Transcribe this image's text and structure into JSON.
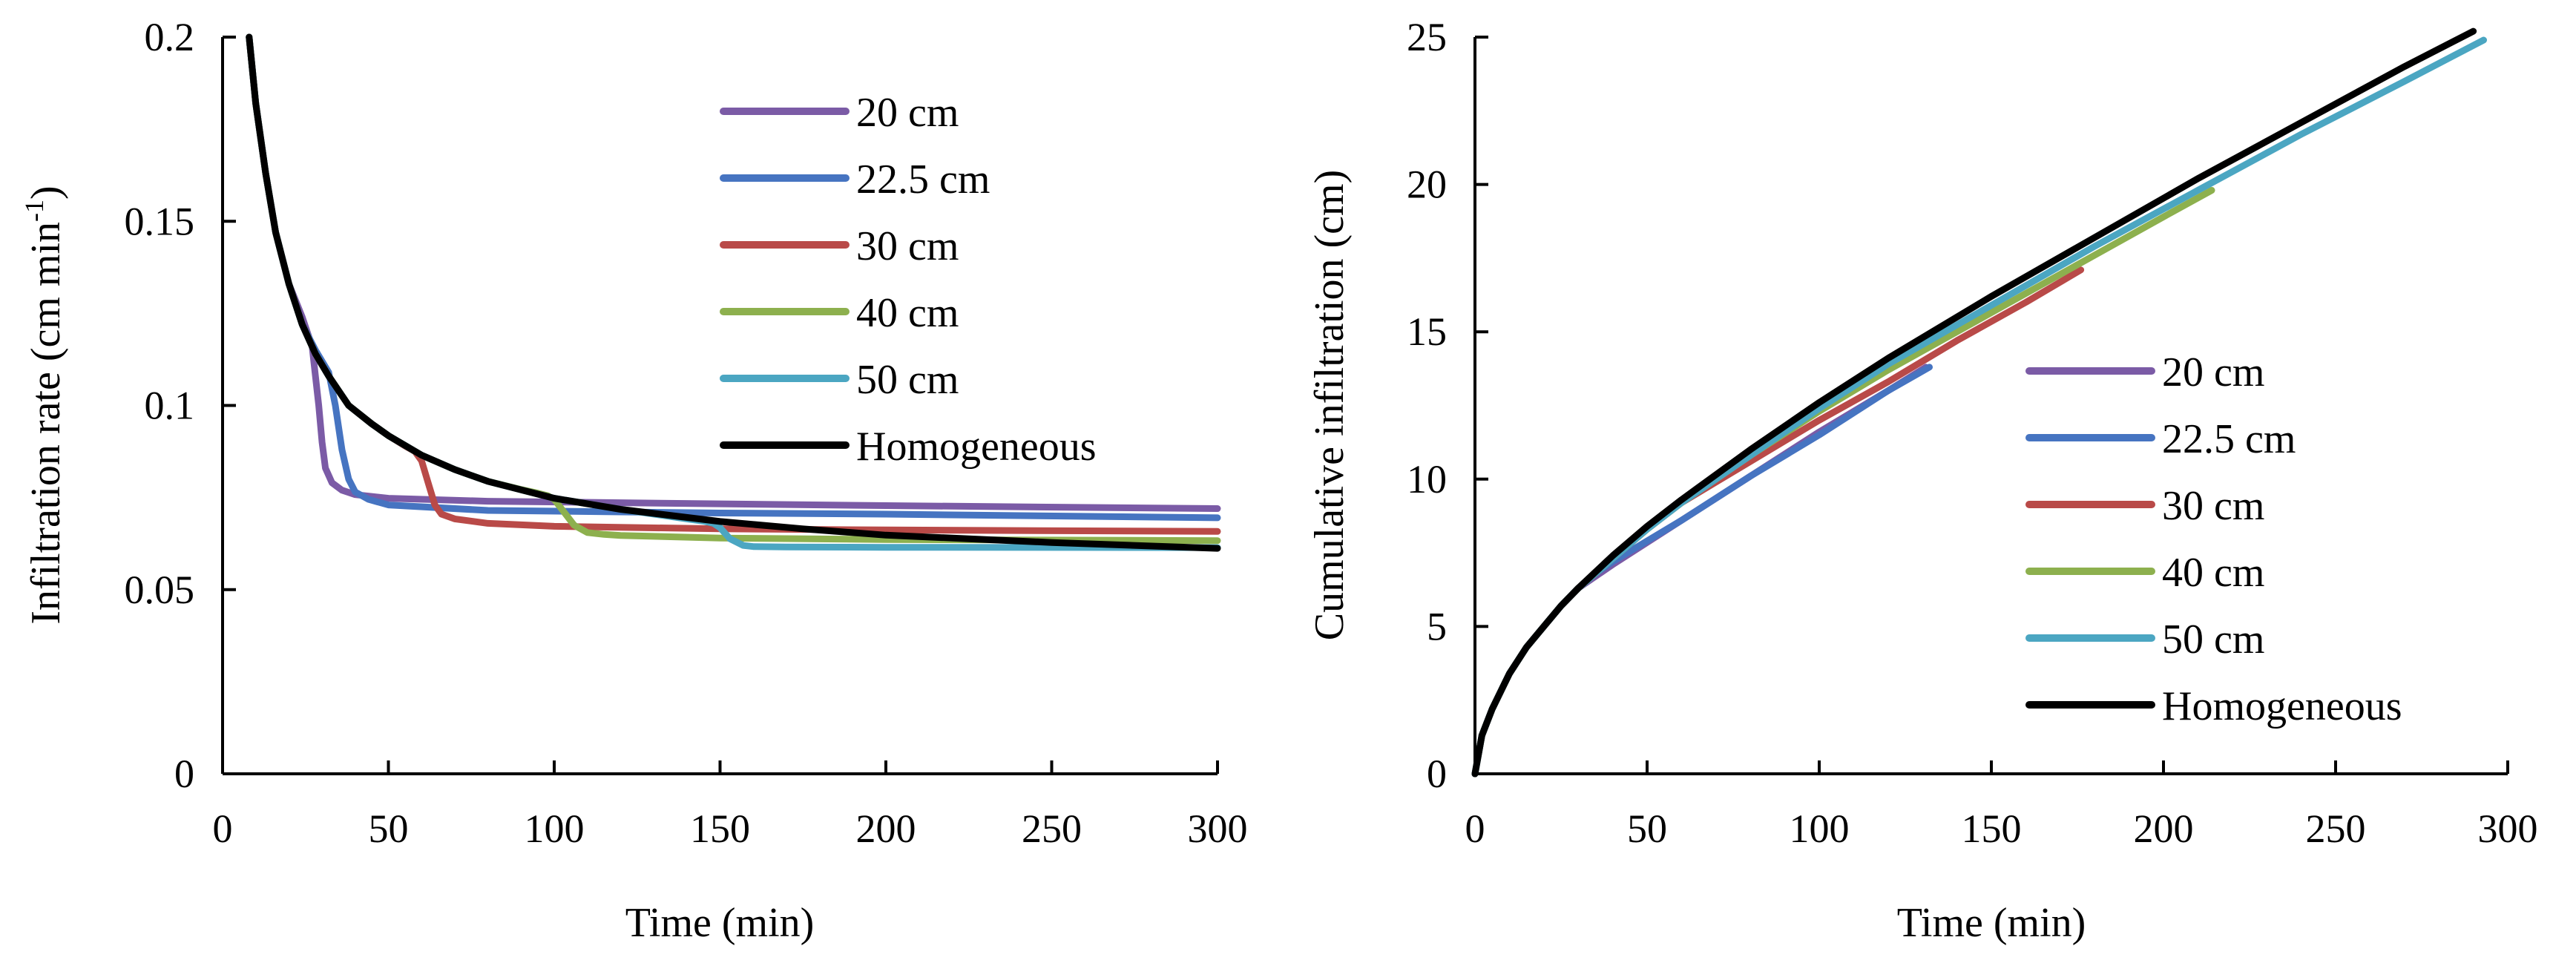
{
  "chart_data": [
    {
      "type": "line",
      "xlabel": "Time (min)",
      "ylabel": "Infiltration rate (cm min",
      "ylabel_sup": "-1",
      "ylabel_end": ")",
      "xlim": [
        0,
        300
      ],
      "ylim": [
        0,
        0.2
      ],
      "xticks": [
        0,
        50,
        100,
        150,
        200,
        250,
        300
      ],
      "xtick_labels": [
        "0",
        "50",
        "100",
        "150",
        "200",
        "250",
        "300"
      ],
      "yticks": [
        0,
        0.05,
        0.1,
        0.15,
        0.2
      ],
      "ytick_labels": [
        "0",
        "0.05",
        "0.1",
        "0.15",
        "0.2"
      ],
      "legend_position": "top-right",
      "series": [
        {
          "name": "20 cm",
          "color": "#7B5BA6",
          "x": [
            8,
            10,
            13,
            16,
            20,
            24,
            27,
            29,
            30,
            31,
            33,
            36,
            40,
            50,
            80,
            150,
            200,
            300
          ],
          "y": [
            0.2,
            0.182,
            0.163,
            0.147,
            0.133,
            0.124,
            0.116,
            0.1,
            0.09,
            0.083,
            0.079,
            0.077,
            0.0758,
            0.0748,
            0.074,
            0.0733,
            0.0728,
            0.072
          ]
        },
        {
          "name": "22.5 cm",
          "color": "#4674C1",
          "x": [
            8,
            10,
            13,
            16,
            20,
            24,
            28,
            32,
            34,
            36,
            38,
            40,
            44,
            50,
            80,
            150,
            200,
            300
          ],
          "y": [
            0.2,
            0.182,
            0.163,
            0.147,
            0.133,
            0.122,
            0.115,
            0.109,
            0.1,
            0.088,
            0.08,
            0.0765,
            0.0745,
            0.073,
            0.0715,
            0.0708,
            0.0705,
            0.0695
          ]
        },
        {
          "name": "30 cm",
          "color": "#B94A48",
          "x": [
            8,
            10,
            13,
            16,
            20,
            24,
            28,
            32,
            38,
            45,
            50,
            55,
            58,
            60,
            62,
            64,
            66,
            70,
            80,
            100,
            150,
            200,
            300
          ],
          "y": [
            0.2,
            0.182,
            0.163,
            0.147,
            0.133,
            0.122,
            0.114,
            0.108,
            0.1,
            0.095,
            0.0918,
            0.089,
            0.0875,
            0.085,
            0.079,
            0.073,
            0.0705,
            0.0692,
            0.068,
            0.0672,
            0.0665,
            0.0662,
            0.0658
          ]
        },
        {
          "name": "40 cm",
          "color": "#8DB04E",
          "x": [
            8,
            10,
            13,
            16,
            20,
            24,
            28,
            32,
            38,
            45,
            50,
            60,
            70,
            80,
            90,
            95,
            98,
            100,
            103,
            106,
            110,
            115,
            120,
            150,
            200,
            300
          ],
          "y": [
            0.2,
            0.182,
            0.163,
            0.147,
            0.133,
            0.122,
            0.114,
            0.108,
            0.1,
            0.095,
            0.0918,
            0.0865,
            0.0826,
            0.0794,
            0.0772,
            0.0762,
            0.0755,
            0.0745,
            0.071,
            0.0675,
            0.0655,
            0.065,
            0.0647,
            0.064,
            0.0636,
            0.0633
          ]
        },
        {
          "name": "50 cm",
          "color": "#4BA6C2",
          "x": [
            8,
            10,
            13,
            16,
            20,
            24,
            28,
            32,
            38,
            45,
            50,
            60,
            70,
            80,
            100,
            120,
            140,
            145,
            148,
            150,
            153,
            157,
            160,
            170,
            200,
            300
          ],
          "y": [
            0.2,
            0.182,
            0.163,
            0.147,
            0.133,
            0.122,
            0.114,
            0.108,
            0.1,
            0.095,
            0.0918,
            0.0865,
            0.0826,
            0.0794,
            0.0748,
            0.0718,
            0.0692,
            0.0686,
            0.068,
            0.0668,
            0.0638,
            0.062,
            0.0617,
            0.0616,
            0.0615,
            0.0614
          ]
        },
        {
          "name": "Homogeneous",
          "color": "#000000",
          "x": [
            8,
            10,
            13,
            16,
            20,
            24,
            28,
            32,
            38,
            45,
            50,
            60,
            70,
            80,
            100,
            120,
            150,
            175,
            200,
            250,
            300
          ],
          "y": [
            0.2,
            0.182,
            0.163,
            0.147,
            0.133,
            0.122,
            0.114,
            0.108,
            0.1,
            0.095,
            0.0918,
            0.0865,
            0.0826,
            0.0794,
            0.0748,
            0.0718,
            0.0685,
            0.0665,
            0.0648,
            0.0628,
            0.0612
          ]
        }
      ]
    },
    {
      "type": "line",
      "xlabel": "Time (min)",
      "ylabel": "Cumulative infiltration (cm)",
      "xlim": [
        0,
        300
      ],
      "ylim": [
        0,
        25
      ],
      "xticks": [
        0,
        50,
        100,
        150,
        200,
        250,
        300
      ],
      "xtick_labels": [
        "0",
        "50",
        "100",
        "150",
        "200",
        "250",
        "300"
      ],
      "yticks": [
        0,
        5,
        10,
        15,
        20,
        25
      ],
      "ytick_labels": [
        "0",
        "5",
        "10",
        "15",
        "20",
        "25"
      ],
      "legend_position": "center-right",
      "series": [
        {
          "name": "20 cm",
          "color": "#7B5BA6",
          "x": [
            0,
            2,
            5,
            10,
            15,
            20,
            25,
            30,
            40,
            60,
            80,
            100,
            120,
            131
          ],
          "y": [
            0,
            1.3,
            2.2,
            3.4,
            4.3,
            5.0,
            5.7,
            6.3,
            7.1,
            8.6,
            10.1,
            11.6,
            13.0,
            13.8
          ]
        },
        {
          "name": "22.5 cm",
          "color": "#4674C1",
          "x": [
            0,
            2,
            5,
            10,
            15,
            20,
            25,
            30,
            35,
            40,
            60,
            80,
            100,
            120,
            132
          ],
          "y": [
            0,
            1.3,
            2.2,
            3.4,
            4.3,
            5.0,
            5.7,
            6.3,
            6.8,
            7.2,
            8.6,
            10.1,
            11.5,
            13.0,
            13.8
          ]
        },
        {
          "name": "30 cm",
          "color": "#B94A48",
          "x": [
            0,
            2,
            5,
            10,
            15,
            20,
            25,
            30,
            40,
            50,
            60,
            70,
            80,
            100,
            120,
            140,
            160,
            176
          ],
          "y": [
            0,
            1.3,
            2.2,
            3.4,
            4.3,
            5.0,
            5.7,
            6.3,
            7.3,
            8.3,
            9.2,
            9.9,
            10.6,
            12.0,
            13.3,
            14.7,
            16.0,
            17.1
          ]
        },
        {
          "name": "40 cm",
          "color": "#8DB04E",
          "x": [
            0,
            2,
            5,
            10,
            15,
            20,
            25,
            30,
            40,
            50,
            60,
            80,
            100,
            120,
            140,
            160,
            180,
            200,
            214
          ],
          "y": [
            0,
            1.3,
            2.2,
            3.4,
            4.3,
            5.0,
            5.7,
            6.3,
            7.3,
            8.3,
            9.2,
            10.8,
            12.3,
            13.7,
            15.0,
            16.3,
            17.6,
            18.9,
            19.8
          ]
        },
        {
          "name": "50 cm",
          "color": "#4BA6C2",
          "x": [
            0,
            2,
            5,
            10,
            15,
            20,
            25,
            30,
            40,
            50,
            60,
            80,
            100,
            120,
            150,
            180,
            210,
            240,
            270,
            293
          ],
          "y": [
            0,
            1.3,
            2.2,
            3.4,
            4.3,
            5.0,
            5.7,
            6.3,
            7.3,
            8.3,
            9.2,
            10.8,
            12.4,
            13.9,
            15.9,
            17.9,
            19.8,
            21.7,
            23.5,
            24.9
          ]
        },
        {
          "name": "Homogeneous",
          "color": "#000000",
          "x": [
            0,
            2,
            5,
            10,
            15,
            20,
            25,
            30,
            40,
            50,
            60,
            80,
            100,
            120,
            150,
            180,
            210,
            240,
            270,
            290
          ],
          "y": [
            0,
            1.3,
            2.2,
            3.4,
            4.3,
            5.0,
            5.7,
            6.3,
            7.4,
            8.4,
            9.3,
            11.0,
            12.6,
            14.1,
            16.2,
            18.2,
            20.2,
            22.1,
            24.0,
            25.2
          ]
        }
      ]
    }
  ]
}
